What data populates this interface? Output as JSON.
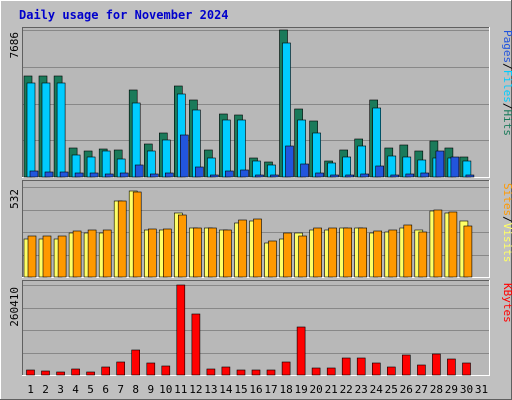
{
  "chart_data": {
    "type": "bar",
    "title": "Daily usage for November 2024",
    "colors": {
      "background": "#c0c0c0",
      "panel": "#b8b8b8",
      "title": "#0000cc",
      "hits": "#1a7a5a",
      "files": "#00ccff",
      "pages": "#2255dd",
      "visits": "#ffff66",
      "sites": "#ff9900",
      "kbytes": "#ff0000",
      "weekend_label": "#008800"
    },
    "x_labels": [
      "1",
      "2",
      "3",
      "4",
      "5",
      "6",
      "7",
      "8",
      "9",
      "10",
      "11",
      "12",
      "13",
      "14",
      "15",
      "16",
      "17",
      "18",
      "19",
      "20",
      "21",
      "22",
      "23",
      "24",
      "25",
      "26",
      "27",
      "28",
      "29",
      "30",
      "31"
    ],
    "weekend_days": [
      2,
      3,
      9,
      10,
      16,
      17,
      23,
      24,
      30,
      31
    ],
    "panels": [
      {
        "id": "hits_files_pages",
        "max_label": "7686",
        "ymax": 7686,
        "legend": [
          {
            "text": "Hits",
            "color": "#1a7a5a"
          },
          {
            "text": "/",
            "color": "#000000"
          },
          {
            "text": "Files",
            "color": "#00ccff"
          },
          {
            "text": "/",
            "color": "#000000"
          },
          {
            "text": "Pages",
            "color": "#2255dd"
          }
        ],
        "series": [
          {
            "name": "Hits",
            "color": "#1a7a5a",
            "values": [
              5300,
              5300,
              5300,
              1500,
              1350,
              1450,
              1400,
              4550,
              1750,
              2300,
              4750,
              4050,
              1400,
              3300,
              3250,
              1000,
              800,
              7686,
              3550,
              2950,
              850,
              1400,
              2000,
              4050,
              1500,
              1650,
              1350,
              1900,
              1500,
              1050,
              null
            ]
          },
          {
            "name": "Files",
            "color": "#00ccff",
            "values": [
              4900,
              4900,
              4900,
              1150,
              1050,
              1350,
              950,
              3850,
              1350,
              1950,
              4350,
              3500,
              1000,
              3000,
              3000,
              850,
              650,
              7000,
              3000,
              2300,
              750,
              1050,
              1600,
              3600,
              1100,
              1050,
              900,
              1000,
              1000,
              850,
              null
            ]
          },
          {
            "name": "Pages",
            "color": "#2255dd",
            "values": [
              300,
              250,
              250,
              200,
              200,
              180,
              200,
              650,
              150,
              200,
              2200,
              500,
              100,
              300,
              350,
              80,
              80,
              1600,
              700,
              200,
              80,
              100,
              150,
              600,
              100,
              150,
              200,
              1350,
              1050,
              100,
              null
            ]
          }
        ]
      },
      {
        "id": "visits_sites",
        "max_label": "532",
        "ymax": 532,
        "legend": [
          {
            "text": "Visits",
            "color": "#ffff66"
          },
          {
            "text": "/",
            "color": "#000000"
          },
          {
            "text": "Sites",
            "color": "#ff9900"
          }
        ],
        "series": [
          {
            "name": "Visits",
            "color": "#ffff66",
            "values": [
              225,
              225,
              225,
              260,
              260,
              260,
              450,
              510,
              280,
              280,
              380,
              290,
              290,
              280,
              320,
              330,
              200,
              225,
              260,
              280,
              280,
              290,
              290,
              260,
              265,
              290,
              280,
              390,
              380,
              330,
              null
            ]
          },
          {
            "name": "Sites",
            "color": "#ff9900",
            "values": [
              245,
              245,
              245,
              270,
              280,
              280,
              450,
              505,
              285,
              285,
              365,
              290,
              290,
              280,
              335,
              340,
              210,
              260,
              245,
              290,
              290,
              290,
              290,
              270,
              275,
              310,
              265,
              395,
              385,
              300,
              null
            ]
          }
        ]
      },
      {
        "id": "kbytes",
        "max_label": "260410",
        "ymax": 260410,
        "legend": [
          {
            "text": "KBytes",
            "color": "#ff0000"
          }
        ],
        "series": [
          {
            "name": "KBytes",
            "color": "#ff0000",
            "values": [
              15000,
              12000,
              10000,
              17000,
              10000,
              22000,
              38000,
              72000,
              35000,
              25000,
              260410,
              176000,
              16000,
              22000,
              15000,
              14000,
              14000,
              38000,
              138000,
              21000,
              21000,
              48000,
              50000,
              36000,
              22000,
              58000,
              30000,
              62000,
              45000,
              34000,
              null
            ]
          }
        ]
      }
    ]
  }
}
